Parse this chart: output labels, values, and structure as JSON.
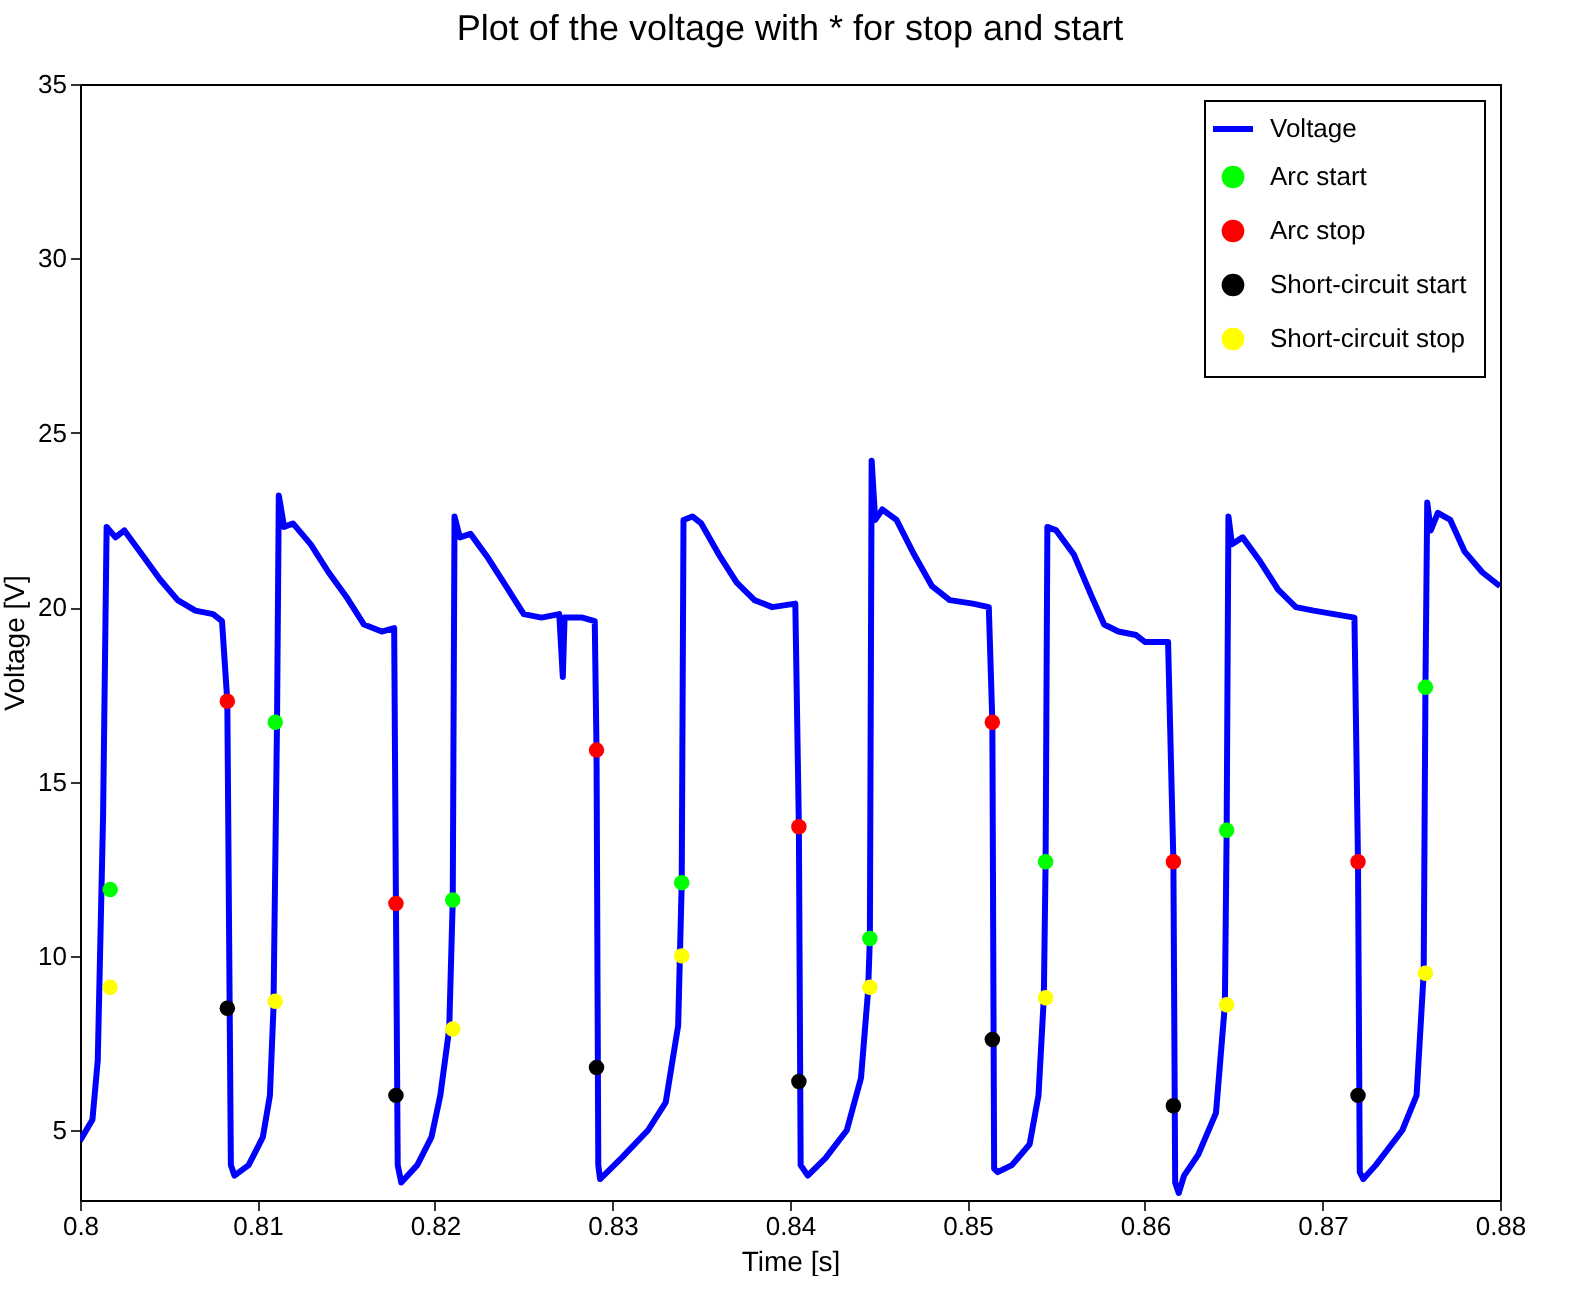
{
  "chart_data": {
    "type": "line",
    "title": "Plot of the voltage with * for stop and start",
    "xlabel": "Time [s]",
    "ylabel": "Voltage [V]",
    "xlim": [
      0.8,
      0.88
    ],
    "xticks": [
      0.8,
      0.81,
      0.82,
      0.83,
      0.84,
      0.85,
      0.86,
      0.87,
      0.88
    ],
    "ylim": [
      3,
      35
    ],
    "yticks": [
      5,
      10,
      15,
      20,
      25,
      30,
      35
    ],
    "grid": false,
    "legend": "top right",
    "series": [
      {
        "name": "Voltage",
        "color": "#0000ff",
        "x": [
          0.8,
          0.8007,
          0.801,
          0.8013,
          0.8015,
          0.802,
          0.8025,
          0.8035,
          0.8045,
          0.8055,
          0.8065,
          0.8075,
          0.808,
          0.8083,
          0.8085,
          0.8087,
          0.8095,
          0.8103,
          0.8107,
          0.8109,
          0.8111,
          0.8112,
          0.8115,
          0.812,
          0.813,
          0.814,
          0.815,
          0.816,
          0.817,
          0.8177,
          0.8178,
          0.8179,
          0.8181,
          0.819,
          0.8198,
          0.8203,
          0.8208,
          0.821,
          0.8211,
          0.8214,
          0.822,
          0.823,
          0.824,
          0.825,
          0.826,
          0.827,
          0.8272,
          0.8273,
          0.8283,
          0.829,
          0.8291,
          0.8292,
          0.8293,
          0.8305,
          0.832,
          0.833,
          0.8337,
          0.8339,
          0.834,
          0.8345,
          0.835,
          0.836,
          0.837,
          0.838,
          0.839,
          0.8403,
          0.8405,
          0.8406,
          0.841,
          0.842,
          0.8432,
          0.844,
          0.8444,
          0.8445,
          0.8446,
          0.8448,
          0.8452,
          0.846,
          0.847,
          0.848,
          0.849,
          0.8503,
          0.8512,
          0.8514,
          0.8515,
          0.8517,
          0.8525,
          0.8535,
          0.854,
          0.8543,
          0.8544,
          0.8545,
          0.855,
          0.856,
          0.857,
          0.8577,
          0.8585,
          0.8595,
          0.86,
          0.8613,
          0.8616,
          0.8617,
          0.8619,
          0.8622,
          0.863,
          0.864,
          0.8645,
          0.8646,
          0.8647,
          0.8649,
          0.8655,
          0.8665,
          0.8675,
          0.8685,
          0.8695,
          0.8718,
          0.872,
          0.8721,
          0.8723,
          0.873,
          0.8745,
          0.8753,
          0.8757,
          0.8758,
          0.8759,
          0.8761,
          0.8765,
          0.8772,
          0.878,
          0.879,
          0.88
        ],
        "values": [
          4.7,
          5.3,
          7,
          14,
          22.3,
          22,
          22.2,
          21.5,
          20.8,
          20.2,
          19.9,
          19.8,
          19.6,
          17.3,
          4,
          3.7,
          4,
          4.8,
          6,
          8.5,
          16.7,
          23.2,
          22.3,
          22.4,
          21.8,
          21,
          20.3,
          19.5,
          19.3,
          19.4,
          11.5,
          4,
          3.5,
          4,
          4.8,
          6,
          7.9,
          11.6,
          22.6,
          22,
          22.1,
          21.4,
          20.6,
          19.8,
          19.7,
          19.8,
          18,
          19.7,
          19.7,
          19.6,
          15.9,
          4,
          3.6,
          4.2,
          5,
          5.8,
          8,
          12.1,
          22.5,
          22.6,
          22.4,
          21.5,
          20.7,
          20.2,
          20,
          20.1,
          13.7,
          4,
          3.7,
          4.2,
          5,
          6.5,
          9,
          10.5,
          24.2,
          22.5,
          22.8,
          22.5,
          21.5,
          20.6,
          20.2,
          20.1,
          20,
          16.7,
          3.9,
          3.8,
          4,
          4.6,
          6,
          8.8,
          12.7,
          22.3,
          22.2,
          21.5,
          20.3,
          19.5,
          19.3,
          19.2,
          19,
          19,
          12.7,
          3.5,
          3.2,
          3.7,
          4.3,
          5.5,
          8.6,
          13.6,
          22.6,
          21.8,
          22,
          21.3,
          20.5,
          20,
          19.9,
          19.7,
          12.7,
          3.8,
          3.6,
          4,
          5,
          6,
          9.5,
          17.7,
          23,
          22.2,
          22.7,
          22.5,
          21.6,
          21,
          20.6
        ]
      },
      {
        "name": "Arc start",
        "type": "scatter",
        "marker": "circle",
        "color": "#00ff00",
        "x": [
          0.8017,
          0.811,
          0.821,
          0.8339,
          0.8445,
          0.8544,
          0.8646,
          0.8758
        ],
        "values": [
          11.9,
          16.7,
          11.6,
          12.1,
          10.5,
          12.7,
          13.6,
          17.7
        ]
      },
      {
        "name": "Arc stop",
        "type": "scatter",
        "marker": "circle",
        "color": "#ff0000",
        "x": [
          0.8083,
          0.8178,
          0.8291,
          0.8405,
          0.8514,
          0.8616,
          0.872
        ],
        "values": [
          17.3,
          11.5,
          15.9,
          13.7,
          16.7,
          12.7,
          12.7
        ]
      },
      {
        "name": "Short-circuit start",
        "type": "scatter",
        "marker": "circle",
        "color": "#000000",
        "x": [
          0.8083,
          0.8178,
          0.8291,
          0.8405,
          0.8514,
          0.8616,
          0.872
        ],
        "values": [
          8.5,
          6,
          6.8,
          6.4,
          7.6,
          5.7,
          6
        ]
      },
      {
        "name": "Short-circuit stop",
        "type": "scatter",
        "marker": "circle",
        "color": "#ffff00",
        "x": [
          0.8017,
          0.811,
          0.821,
          0.8339,
          0.8445,
          0.8544,
          0.8646,
          0.8758
        ],
        "values": [
          9.1,
          8.7,
          7.9,
          10,
          9.1,
          8.8,
          8.6,
          9.5
        ]
      }
    ]
  }
}
